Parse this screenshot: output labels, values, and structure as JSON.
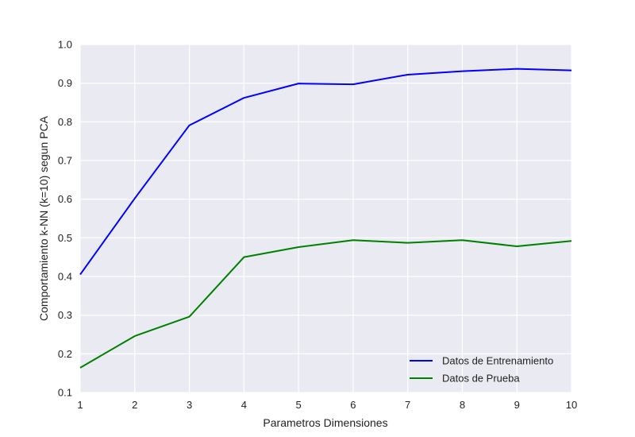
{
  "chart_data": {
    "type": "line",
    "title": "",
    "xlabel": "Parametros Dimensiones",
    "ylabel": "Comportamiento k-NN (k=10) segun PCA",
    "x": [
      1,
      2,
      3,
      4,
      5,
      6,
      7,
      8,
      9,
      10
    ],
    "xlim": [
      1,
      10
    ],
    "ylim": [
      0.1,
      1.0
    ],
    "xticks": [
      "1",
      "2",
      "3",
      "4",
      "5",
      "6",
      "7",
      "8",
      "9",
      "10"
    ],
    "yticks": [
      "0.1",
      "0.2",
      "0.3",
      "0.4",
      "0.5",
      "0.6",
      "0.7",
      "0.8",
      "0.9",
      "1.0"
    ],
    "grid": true,
    "legend_position": "lower-right",
    "background_color": "#eaeaf2",
    "series": [
      {
        "name": "Datos de Entrenamiento",
        "color": "#0000ff",
        "values": [
          0.405,
          0.602,
          0.791,
          0.862,
          0.899,
          0.897,
          0.922,
          0.931,
          0.937,
          0.933
        ]
      },
      {
        "name": "Datos de Prueba",
        "color": "#008000",
        "values": [
          0.164,
          0.246,
          0.296,
          0.45,
          0.476,
          0.494,
          0.487,
          0.494,
          0.478,
          0.492
        ]
      }
    ]
  }
}
